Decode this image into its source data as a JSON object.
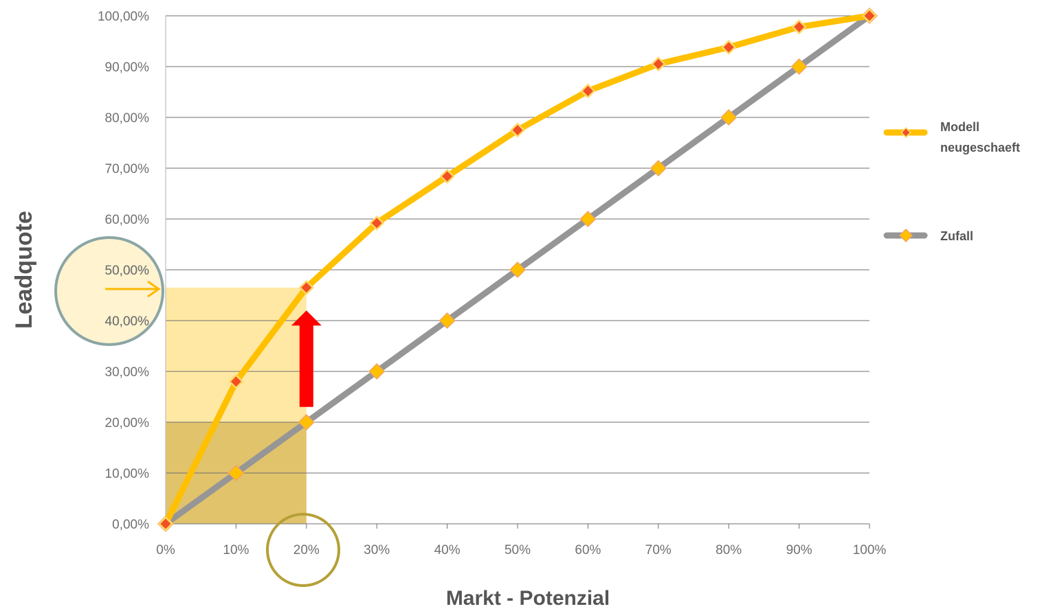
{
  "chart_data": {
    "type": "line",
    "xlabel": "Markt - Potenzial",
    "ylabel": "Leadquote",
    "x": [
      0,
      10,
      20,
      30,
      40,
      50,
      60,
      70,
      80,
      90,
      100
    ],
    "x_tick_labels": [
      "0%",
      "10%",
      "20%",
      "30%",
      "40%",
      "50%",
      "60%",
      "70%",
      "80%",
      "90%",
      "100%"
    ],
    "y_tick_labels": [
      "0,00%",
      "10,00%",
      "20,00%",
      "30,00%",
      "40,00%",
      "50,00%",
      "60,00%",
      "70,00%",
      "80,00%",
      "90,00%",
      "100,00%"
    ],
    "ylim": [
      0,
      100
    ],
    "xlim": [
      0,
      100
    ],
    "grid": "horizontal",
    "legend_position": "right",
    "series": [
      {
        "name": "Modell neugeschaeft",
        "legend_lines": [
          "Modell",
          "neugeschaeft"
        ],
        "color": "#FFC000",
        "marker_color": "#F25022",
        "values": [
          0,
          28,
          46.5,
          59.2,
          68.4,
          77.5,
          85.2,
          90.5,
          93.8,
          97.8,
          100
        ]
      },
      {
        "name": "Zufall",
        "legend_lines": [
          "Zufall"
        ],
        "color": "#969696",
        "marker_color": "#FFC000",
        "values": [
          0,
          10,
          20,
          30,
          40,
          50,
          60,
          70,
          80,
          90,
          100
        ]
      }
    ],
    "annotations": {
      "highlight_x": 20,
      "highlight_y": 46.5,
      "highlight_fill": "#FFD966",
      "arrow_from_y": 23,
      "arrow_to_y": 42,
      "arrow_color": "#FF0000",
      "circle_y_color": "#7F9C9C",
      "circle_x_color": "#B5A038"
    }
  }
}
